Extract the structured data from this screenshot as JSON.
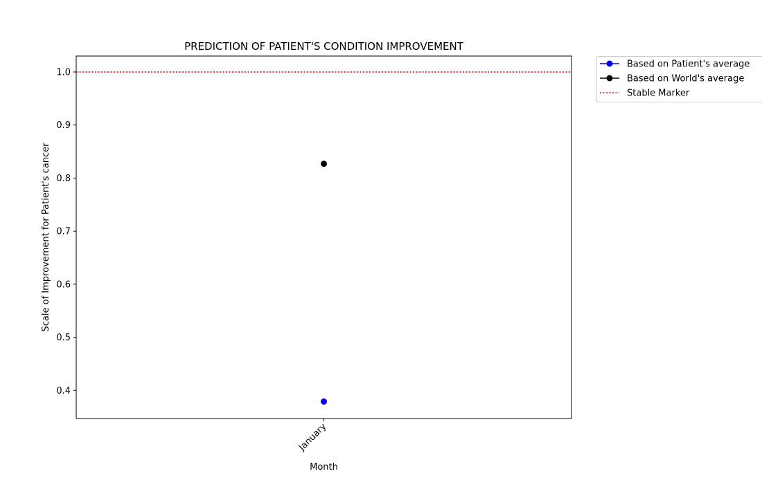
{
  "chart_data": {
    "type": "line",
    "title": "PREDICTION OF PATIENT'S CONDITION IMPROVEMENT",
    "xlabel": "Month",
    "ylabel": "Scale of Improvement for Patient's cancer",
    "categories": [
      "January"
    ],
    "ylim": [
      0.347,
      1.03
    ],
    "yticks": [
      0.4,
      0.5,
      0.6,
      0.7,
      0.8,
      0.9,
      1.0
    ],
    "grid": false,
    "legend_position": "outside-top-right",
    "series": [
      {
        "name": "Based on Patient's average",
        "values": [
          0.379
        ],
        "color": "#0000ff",
        "marker": "circle"
      },
      {
        "name": "Based on World's average",
        "values": [
          0.827
        ],
        "color": "#000000",
        "marker": "circle"
      }
    ],
    "reference_lines": [
      {
        "name": "Stable Marker",
        "y": 1.0,
        "color": "#ff0000",
        "style": "dotted"
      }
    ]
  }
}
